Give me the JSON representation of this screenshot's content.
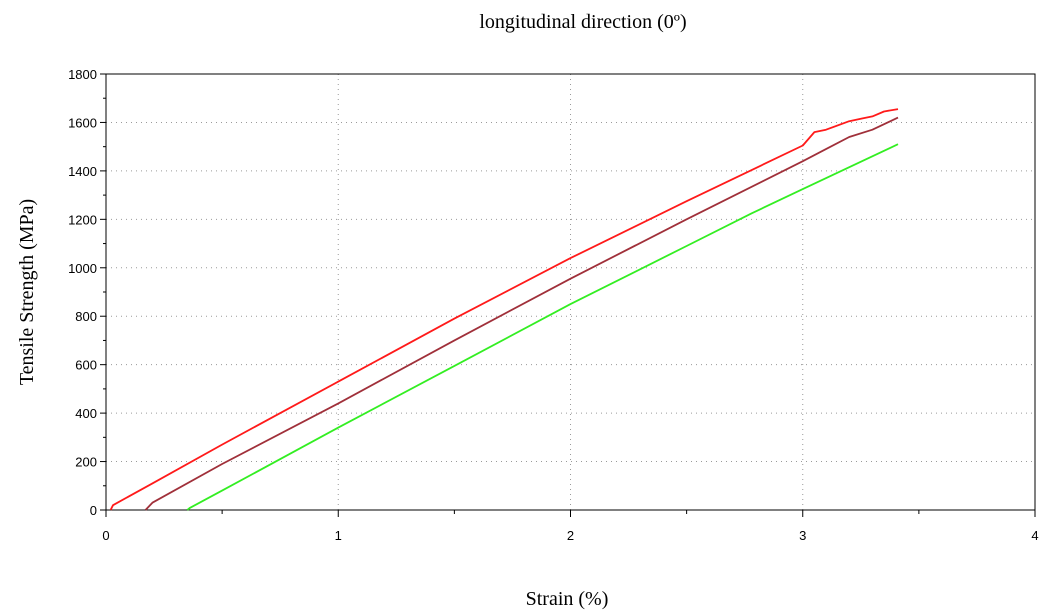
{
  "chart_data": {
    "type": "line",
    "title": "longitudinal direction (0º)",
    "xlabel": "Strain (%)",
    "ylabel": "Tensile Strength (MPa)",
    "xlim": [
      0,
      4
    ],
    "ylim": [
      0,
      1800
    ],
    "x_ticks": [
      0,
      1,
      2,
      3,
      4
    ],
    "x_minor_ticks": [
      0.5,
      1.5,
      2.5,
      3.5
    ],
    "y_ticks": [
      0,
      200,
      400,
      600,
      800,
      1000,
      1200,
      1400,
      1600,
      1800
    ],
    "grid": true,
    "legend": "none",
    "series": [
      {
        "color": "#ff1a1a",
        "points": [
          [
            0.02,
            0
          ],
          [
            0.03,
            20
          ],
          [
            0.2,
            110
          ],
          [
            0.5,
            270
          ],
          [
            1.0,
            530
          ],
          [
            1.5,
            790
          ],
          [
            2.0,
            1040
          ],
          [
            2.5,
            1275
          ],
          [
            3.0,
            1505
          ],
          [
            3.05,
            1560
          ],
          [
            3.1,
            1570
          ],
          [
            3.2,
            1605
          ],
          [
            3.25,
            1615
          ],
          [
            3.3,
            1625
          ],
          [
            3.35,
            1645
          ],
          [
            3.41,
            1655
          ]
        ]
      },
      {
        "color": "#a0303a",
        "points": [
          [
            0.17,
            0
          ],
          [
            0.2,
            30
          ],
          [
            0.5,
            190
          ],
          [
            1.0,
            440
          ],
          [
            1.5,
            700
          ],
          [
            2.0,
            955
          ],
          [
            2.5,
            1200
          ],
          [
            3.0,
            1440
          ],
          [
            3.1,
            1490
          ],
          [
            3.2,
            1540
          ],
          [
            3.3,
            1570
          ],
          [
            3.41,
            1620
          ]
        ]
      },
      {
        "color": "#33ee22",
        "points": [
          [
            0.35,
            0
          ],
          [
            0.36,
            8
          ],
          [
            0.5,
            80
          ],
          [
            1.0,
            340
          ],
          [
            1.5,
            595
          ],
          [
            2.0,
            850
          ],
          [
            2.5,
            1090
          ],
          [
            2.78,
            1225
          ],
          [
            3.0,
            1325
          ],
          [
            3.41,
            1510
          ]
        ]
      }
    ]
  }
}
